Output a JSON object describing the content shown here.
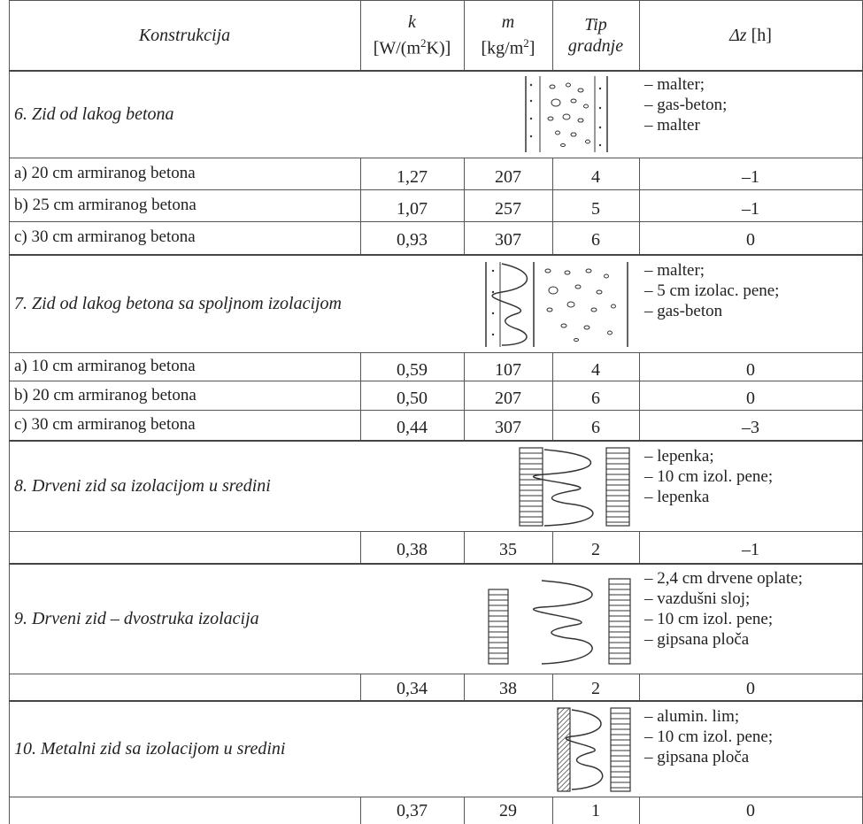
{
  "table": {
    "headers": {
      "construction": "Konstrukcija",
      "k_symbol": "k",
      "k_unit_pre": "[W/(m",
      "k_unit_sup": "2",
      "k_unit_post": "K)]",
      "m_symbol": "m",
      "m_unit_pre": "[kg/m",
      "m_unit_sup": "2",
      "m_unit_post": "]",
      "type_line1": "Tip",
      "type_line2": "gradnje",
      "dz_symbol": "Δz",
      "dz_unit": "[h]"
    },
    "groups": [
      {
        "title": "6. Zid od lakog betona",
        "materials": [
          "– malter;",
          "– gas-beton;",
          "– malter"
        ],
        "rows": [
          {
            "label": "a) 20 cm armiranog betona",
            "k": "1,27",
            "m": "207",
            "type": "4",
            "dz": "–1"
          },
          {
            "label": "b) 25 cm armiranog betona",
            "k": "1,07",
            "m": "257",
            "type": "5",
            "dz": "–1"
          },
          {
            "label": "c) 30 cm armiranog betona",
            "k": "0,93",
            "m": "307",
            "type": "6",
            "dz": "0"
          }
        ]
      },
      {
        "title": "7. Zid od lakog betona sa spoljnom izolacijom",
        "materials": [
          "– malter;",
          "– 5 cm izolac. pene;",
          "– gas-beton"
        ],
        "rows": [
          {
            "label": "a) 10 cm armiranog betona",
            "k": "0,59",
            "m": "107",
            "type": "4",
            "dz": "0"
          },
          {
            "label": "b) 20 cm armiranog betona",
            "k": "0,50",
            "m": "207",
            "type": "6",
            "dz": "0"
          },
          {
            "label": "c) 30 cm armiranog betona",
            "k": "0,44",
            "m": "307",
            "type": "6",
            "dz": "–3"
          }
        ]
      },
      {
        "title": "8. Drveni zid sa izolacijom u sredini",
        "materials": [
          "– lepenka;",
          "– 10 cm izol. pene;",
          "– lepenka"
        ],
        "rows": [
          {
            "label": "",
            "k": "0,38",
            "m": "35",
            "type": "2",
            "dz": "–1"
          }
        ]
      },
      {
        "title": "9. Drveni zid – dvostruka izolacija",
        "materials": [
          "– 2,4 cm drvene oplate;",
          "– vazdušni sloj;",
          "– 10 cm izol. pene;",
          "– gipsana ploča"
        ],
        "rows": [
          {
            "label": "",
            "k": "0,34",
            "m": "38",
            "type": "2",
            "dz": "0"
          }
        ]
      },
      {
        "title": "10. Metalni zid sa izolacijom u sredini",
        "materials": [
          "– alumin. lim;",
          "– 10 cm izol. pene;",
          "– gipsana ploča"
        ],
        "rows": [
          {
            "label": "",
            "k": "0,37",
            "m": "29",
            "type": "1",
            "dz": "0"
          }
        ]
      }
    ]
  }
}
